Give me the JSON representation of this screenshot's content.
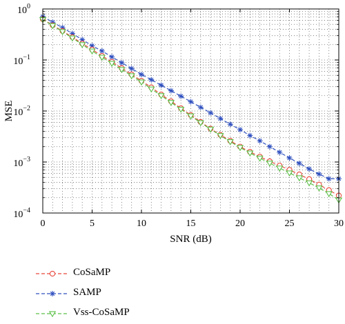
{
  "chart_data": {
    "type": "line",
    "title": "",
    "xlabel": "SNR (dB)",
    "ylabel": "MSE",
    "xlim": [
      0,
      30
    ],
    "ylim": [
      0.0001,
      1
    ],
    "yscale": "log",
    "grid": true,
    "legend_position": "bottom-left, outside plot",
    "xticks": [
      0,
      5,
      10,
      15,
      20,
      25,
      30
    ],
    "yticks": [
      {
        "base": "10",
        "exp": "0",
        "value": 1
      },
      {
        "base": "10",
        "exp": "−1",
        "value": 0.1
      },
      {
        "base": "10",
        "exp": "−2",
        "value": 0.01
      },
      {
        "base": "10",
        "exp": "−3",
        "value": 0.001
      },
      {
        "base": "10",
        "exp": "−4",
        "value": 0.0001
      }
    ],
    "x": [
      0,
      1,
      2,
      3,
      4,
      5,
      6,
      7,
      8,
      9,
      10,
      11,
      12,
      13,
      14,
      15,
      16,
      17,
      18,
      19,
      20,
      21,
      22,
      23,
      24,
      25,
      26,
      27,
      28,
      29,
      30
    ],
    "series": [
      {
        "name": "CoSaMP",
        "color": "#e8463a",
        "marker": "circle",
        "values": [
          0.63,
          0.48,
          0.37,
          0.28,
          0.21,
          0.16,
          0.12,
          0.092,
          0.069,
          0.052,
          0.039,
          0.029,
          0.021,
          0.0155,
          0.0113,
          0.0083,
          0.0061,
          0.0045,
          0.0034,
          0.0026,
          0.002,
          0.00158,
          0.00127,
          0.00103,
          0.00085,
          0.0007,
          0.00057,
          0.00046,
          0.00036,
          0.00028,
          0.00022
        ]
      },
      {
        "name": "SAMP",
        "color": "#2e4fbf",
        "marker": "asterisk",
        "values": [
          0.71,
          0.55,
          0.43,
          0.33,
          0.25,
          0.19,
          0.15,
          0.115,
          0.088,
          0.068,
          0.052,
          0.041,
          0.032,
          0.025,
          0.0195,
          0.0152,
          0.0118,
          0.0092,
          0.0071,
          0.0055,
          0.0043,
          0.0033,
          0.0026,
          0.002,
          0.00155,
          0.0012,
          0.00094,
          0.00073,
          0.00058,
          0.00047,
          0.00047
        ]
      },
      {
        "name": "Vss-CoSaMP",
        "color": "#5cc048",
        "marker": "triangle-down",
        "values": [
          0.62,
          0.47,
          0.36,
          0.27,
          0.2,
          0.15,
          0.113,
          0.086,
          0.065,
          0.049,
          0.037,
          0.027,
          0.02,
          0.0147,
          0.0108,
          0.008,
          0.0059,
          0.0044,
          0.0033,
          0.0025,
          0.00192,
          0.0015,
          0.00119,
          0.00095,
          0.00076,
          0.00061,
          0.00049,
          0.00039,
          0.00031,
          0.00024,
          0.00018
        ]
      }
    ]
  }
}
